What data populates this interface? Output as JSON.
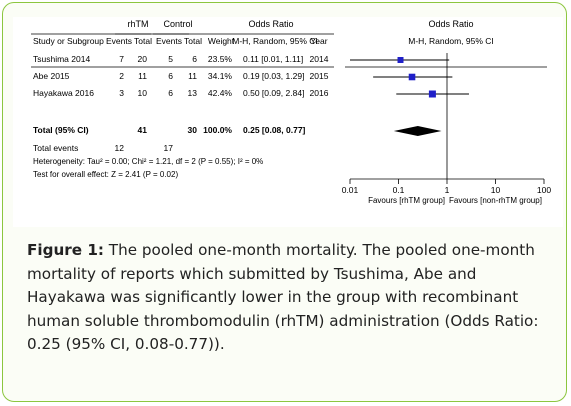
{
  "chart_data": {
    "type": "forest",
    "headers": {
      "group_treatment": "rhTM",
      "group_control": "Control",
      "odds_ratio": "Odds Ratio",
      "odds_ratio_plot": "Odds Ratio",
      "study": "Study or Subgroup",
      "events_t": "Events",
      "total_t": "Total",
      "events_c": "Events",
      "total_c": "Total",
      "weight": "Weight",
      "method": "M-H, Random, 95% CI",
      "year": "Year",
      "method_plot": "M-H, Random, 95% CI"
    },
    "studies": [
      {
        "name": "Tsushima 2014",
        "events_t": "7",
        "total_t": "20",
        "events_c": "5",
        "total_c": "6",
        "weight": "23.5%",
        "ci_text": "0.11 [0.01, 1.11]",
        "year": "2014",
        "or": 0.11,
        "lower": 0.01,
        "upper": 1.11,
        "weight_value": 23.5
      },
      {
        "name": "Abe 2015",
        "events_t": "2",
        "total_t": "11",
        "events_c": "6",
        "total_c": "11",
        "weight": "34.1%",
        "ci_text": "0.19 [0.03, 1.29]",
        "year": "2015",
        "or": 0.19,
        "lower": 0.03,
        "upper": 1.29,
        "weight_value": 34.1
      },
      {
        "name": "Hayakawa 2016",
        "events_t": "3",
        "total_t": "10",
        "events_c": "6",
        "total_c": "13",
        "weight": "42.4%",
        "ci_text": "0.50 [0.09, 2.84]",
        "year": "2016",
        "or": 0.5,
        "lower": 0.09,
        "upper": 2.84,
        "weight_value": 42.4
      }
    ],
    "total": {
      "name": "Total (95% CI)",
      "total_t": "41",
      "total_c": "30",
      "weight": "100.0%",
      "ci_text": "0.25 [0.08, 0.77]",
      "or": 0.25,
      "lower": 0.08,
      "upper": 0.77
    },
    "total_events": {
      "label": "Total events",
      "events_t": "12",
      "events_c": "17"
    },
    "heterogeneity": "Heterogeneity: Tau² = 0.00; Chi² = 1.21, df = 2 (P = 0.55); I² = 0%",
    "overall_effect": "Test for overall effect: Z = 2.41 (P = 0.02)",
    "x_axis": {
      "scale": "log",
      "ticks": [
        {
          "value": 0.01,
          "label": "0.01"
        },
        {
          "value": 0.1,
          "label": "0.1"
        },
        {
          "value": 1,
          "label": "1"
        },
        {
          "value": 10,
          "label": "10"
        },
        {
          "value": 100,
          "label": "100"
        }
      ],
      "range": [
        0.01,
        100
      ]
    },
    "favours_left": "Favours [rhTM group]",
    "favours_right": "Favours [non-rhTM group]",
    "colors": {
      "marker": "#1f1fc8",
      "ink": "#000000"
    }
  },
  "caption": {
    "label": "Figure 1:",
    "text": " The pooled one-month mortality. The pooled one-month mortality of reports which submitted by Tsushima, Abe and Hayakawa was significantly lower in the group with recombinant human soluble thrombomodulin (rhTM) administration (Odds Ratio: 0.25 (95% CI, 0.08-0.77))."
  }
}
